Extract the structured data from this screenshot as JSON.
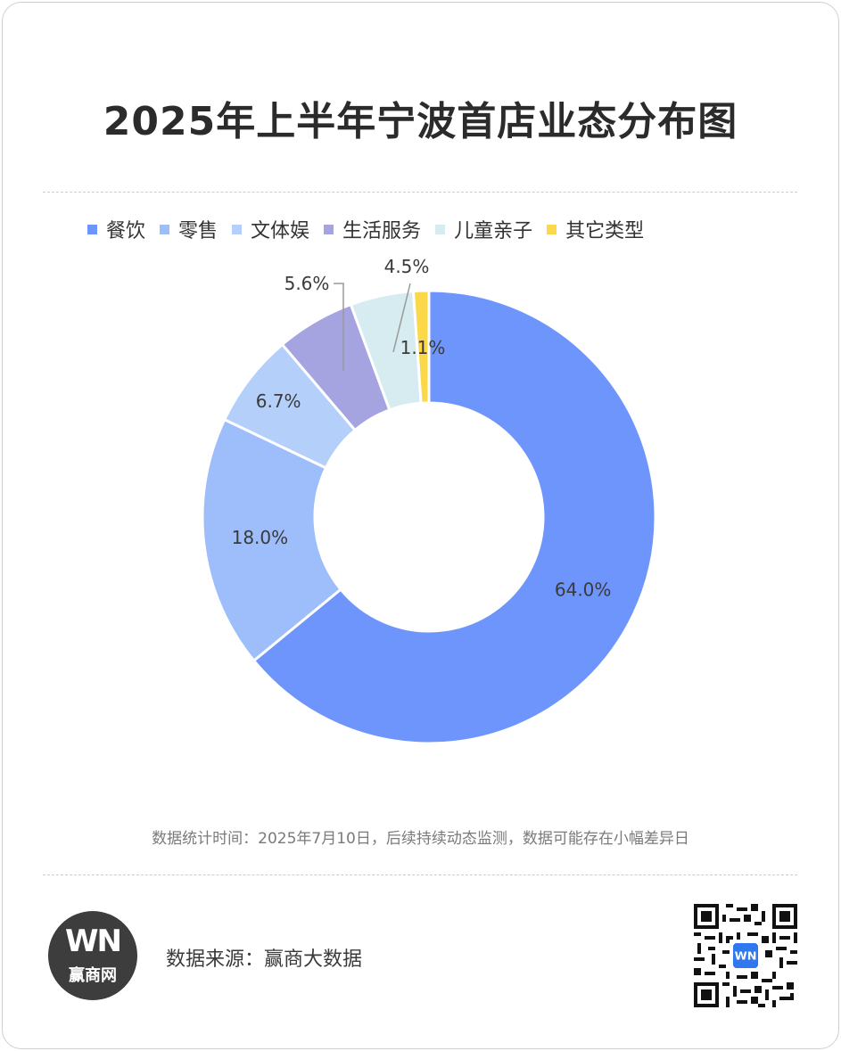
{
  "title": "2025年上半年宁波首店业态分布图",
  "chart_data": {
    "type": "pie",
    "donut": true,
    "labels": [
      "餐饮",
      "零售",
      "文体娱",
      "生活服务",
      "儿童亲子",
      "其它类型"
    ],
    "values": [
      64.0,
      18.0,
      6.7,
      5.6,
      4.5,
      1.1
    ],
    "value_labels": [
      "64.0%",
      "18.0%",
      "6.7%",
      "5.6%",
      "4.5%",
      "1.1%"
    ],
    "colors": [
      "#6d95fb",
      "#9dbdfb",
      "#b5cffb",
      "#a5a3e0",
      "#d6ecf0",
      "#fbd84a"
    ],
    "legend_position": "top",
    "start": "12 o'clock, clockwise"
  },
  "legend": [
    {
      "label": "餐饮",
      "color": "#6d95fb"
    },
    {
      "label": "零售",
      "color": "#9dbdfb"
    },
    {
      "label": "文体娱",
      "color": "#b5cffb"
    },
    {
      "label": "生活服务",
      "color": "#a5a3e0"
    },
    {
      "label": "儿童亲子",
      "color": "#d6ecf0"
    },
    {
      "label": "其它类型",
      "color": "#fbd84a"
    }
  ],
  "note": "数据统计时间：2025年7月10日，后续持续动态监测，数据可能存在小幅差异日",
  "footer": {
    "logo_mark": "WN",
    "logo_text": "赢商网",
    "source": "数据来源：赢商大数据",
    "qr_label": "WN"
  }
}
